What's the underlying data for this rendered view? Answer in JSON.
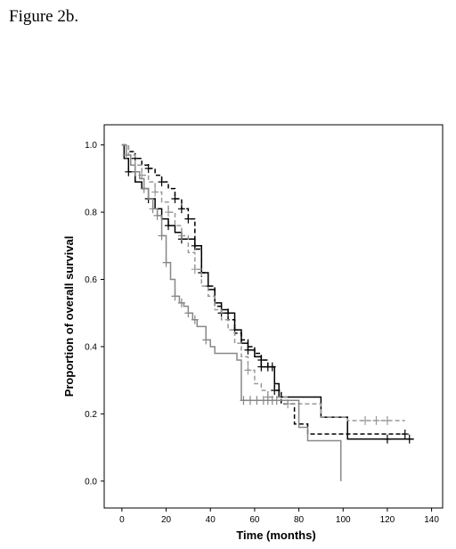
{
  "figure_caption": "Figure 2b.",
  "chart_data": {
    "type": "line",
    "subtype": "kaplan-meier-step",
    "title": "",
    "xlabel": "Time (months)",
    "ylabel": "Proportion of overall survival",
    "xlim": [
      -8,
      145
    ],
    "ylim": [
      -0.08,
      1.06
    ],
    "x_ticks": [
      0,
      20,
      40,
      60,
      80,
      100,
      120,
      140
    ],
    "y_ticks": [
      0.0,
      0.2,
      0.4,
      0.6,
      0.8,
      1.0
    ],
    "y_tick_labels": [
      "0.0",
      "0.2",
      "0.4",
      "0.6",
      "0.8",
      "1.0"
    ],
    "grid": false,
    "legend": "none",
    "series": [
      {
        "color": "#000000",
        "style": "solid",
        "points": [
          [
            0,
            1.0
          ],
          [
            1,
            0.96
          ],
          [
            3,
            0.92
          ],
          [
            6,
            0.89
          ],
          [
            9,
            0.87
          ],
          [
            12,
            0.84
          ],
          [
            15,
            0.81
          ],
          [
            18,
            0.78
          ],
          [
            21,
            0.76
          ],
          [
            24,
            0.74
          ],
          [
            27,
            0.72
          ],
          [
            33,
            0.7
          ],
          [
            36,
            0.62
          ],
          [
            39,
            0.57
          ],
          [
            42,
            0.53
          ],
          [
            45,
            0.51
          ],
          [
            48,
            0.5
          ],
          [
            51,
            0.45
          ],
          [
            54,
            0.41
          ],
          [
            57,
            0.39
          ],
          [
            60,
            0.37
          ],
          [
            63,
            0.34
          ],
          [
            69,
            0.29
          ],
          [
            71,
            0.25
          ],
          [
            90,
            0.19
          ],
          [
            102,
            0.125
          ],
          [
            132,
            0.125
          ]
        ],
        "censor_x": [
          3,
          12,
          21,
          27,
          33,
          36,
          48,
          51,
          57,
          63,
          66,
          68,
          120,
          130
        ]
      },
      {
        "color": "#000000",
        "style": "dashed",
        "points": [
          [
            0,
            1.0
          ],
          [
            3,
            0.98
          ],
          [
            6,
            0.96
          ],
          [
            9,
            0.94
          ],
          [
            12,
            0.93
          ],
          [
            15,
            0.91
          ],
          [
            18,
            0.89
          ],
          [
            21,
            0.87
          ],
          [
            24,
            0.84
          ],
          [
            27,
            0.81
          ],
          [
            30,
            0.78
          ],
          [
            33,
            0.69
          ],
          [
            36,
            0.62
          ],
          [
            39,
            0.58
          ],
          [
            42,
            0.52
          ],
          [
            45,
            0.5
          ],
          [
            48,
            0.48
          ],
          [
            51,
            0.44
          ],
          [
            54,
            0.42
          ],
          [
            57,
            0.4
          ],
          [
            60,
            0.38
          ],
          [
            63,
            0.36
          ],
          [
            66,
            0.34
          ],
          [
            69,
            0.27
          ],
          [
            72,
            0.23
          ],
          [
            78,
            0.17
          ],
          [
            84,
            0.14
          ],
          [
            128,
            0.14
          ]
        ],
        "censor_x": [
          6,
          12,
          18,
          24,
          27,
          30,
          39,
          45,
          63,
          69,
          128
        ]
      },
      {
        "color": "#999999",
        "style": "dashed",
        "points": [
          [
            0,
            1.0
          ],
          [
            3,
            0.97
          ],
          [
            6,
            0.94
          ],
          [
            9,
            0.91
          ],
          [
            12,
            0.89
          ],
          [
            15,
            0.86
          ],
          [
            18,
            0.83
          ],
          [
            21,
            0.8
          ],
          [
            24,
            0.76
          ],
          [
            27,
            0.73
          ],
          [
            30,
            0.68
          ],
          [
            33,
            0.63
          ],
          [
            36,
            0.58
          ],
          [
            39,
            0.55
          ],
          [
            42,
            0.51
          ],
          [
            45,
            0.48
          ],
          [
            48,
            0.45
          ],
          [
            51,
            0.41
          ],
          [
            54,
            0.37
          ],
          [
            57,
            0.33
          ],
          [
            60,
            0.29
          ],
          [
            63,
            0.27
          ],
          [
            66,
            0.25
          ],
          [
            75,
            0.23
          ],
          [
            90,
            0.19
          ],
          [
            102,
            0.18
          ],
          [
            128,
            0.18
          ]
        ],
        "censor_x": [
          9,
          15,
          21,
          27,
          33,
          57,
          66,
          75,
          110,
          115,
          120
        ]
      },
      {
        "color": "#888888",
        "style": "solid",
        "points": [
          [
            0,
            1.0
          ],
          [
            2,
            0.97
          ],
          [
            4,
            0.94
          ],
          [
            6,
            0.92
          ],
          [
            8,
            0.9
          ],
          [
            10,
            0.87
          ],
          [
            12,
            0.84
          ],
          [
            14,
            0.81
          ],
          [
            16,
            0.79
          ],
          [
            18,
            0.73
          ],
          [
            20,
            0.65
          ],
          [
            22,
            0.6
          ],
          [
            24,
            0.55
          ],
          [
            26,
            0.53
          ],
          [
            28,
            0.52
          ],
          [
            30,
            0.5
          ],
          [
            32,
            0.48
          ],
          [
            34,
            0.46
          ],
          [
            38,
            0.42
          ],
          [
            40,
            0.4
          ],
          [
            42,
            0.38
          ],
          [
            52,
            0.36
          ],
          [
            54,
            0.24
          ],
          [
            80,
            0.16
          ],
          [
            84,
            0.12
          ],
          [
            99,
            0.12
          ],
          [
            99,
            0.0
          ]
        ],
        "censor_x": [
          2,
          6,
          10,
          14,
          16,
          18,
          20,
          24,
          27,
          30,
          33,
          38,
          55,
          58,
          61,
          64,
          66,
          68,
          70
        ]
      }
    ]
  }
}
